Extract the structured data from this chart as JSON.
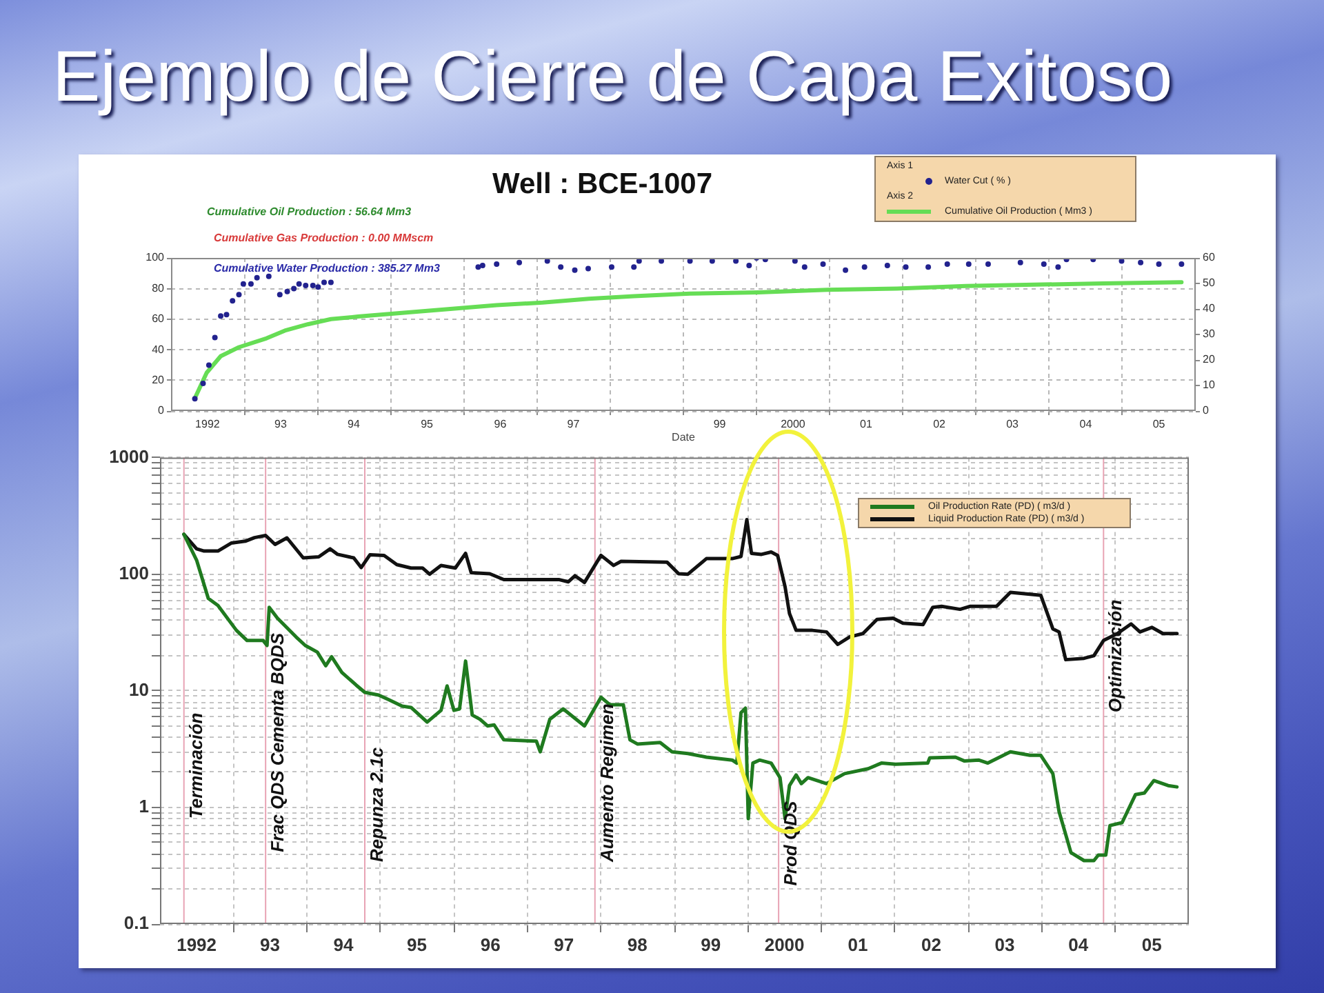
{
  "chart_data": [
    {
      "type": "line",
      "title": "Ejemplo de Cierre de Capa Exitoso",
      "subtitle": "Well : BCE-1007",
      "xlabel": "Date",
      "annotations": [
        "Cumulative Oil Production : 56.64 Mm3",
        "Cumulative Gas Production : 0.00 MMscm",
        "Cumulative Water Production : 385.27 Mm3",
        "Axis 1",
        "Axis 2"
      ],
      "xlim": [
        "1992",
        "2006"
      ],
      "xticks": [
        {
          "value": "1992-07",
          "label": "1992"
        },
        {
          "value": "1993",
          "label": null
        },
        {
          "value": "1993-07",
          "label": "93"
        },
        {
          "value": "1994",
          "label": null
        },
        {
          "value": "1994-07",
          "label": "94"
        },
        {
          "value": "1995",
          "label": null
        },
        {
          "value": "1995-07",
          "label": "95"
        },
        {
          "value": "1996",
          "label": null
        },
        {
          "value": "1996-07",
          "label": "96"
        },
        {
          "value": "1997",
          "label": null
        },
        {
          "value": "1997-07",
          "label": "97"
        },
        {
          "value": "1998",
          "label": null
        },
        {
          "value": "1999",
          "label": null
        },
        {
          "value": "1999-07",
          "label": "99"
        },
        {
          "value": "2000",
          "label": null
        },
        {
          "value": "2000-07",
          "label": "2000"
        },
        {
          "value": "2001",
          "label": null
        },
        {
          "value": "2001-07",
          "label": "01"
        },
        {
          "value": "2002",
          "label": null
        },
        {
          "value": "2002-07",
          "label": "02"
        },
        {
          "value": "2003",
          "label": null
        },
        {
          "value": "2003-07",
          "label": "03"
        },
        {
          "value": "2004",
          "label": null
        },
        {
          "value": "2004-07",
          "label": "04"
        },
        {
          "value": "2005",
          "label": null
        },
        {
          "value": "2005-07",
          "label": "05"
        }
      ],
      "ylim": [
        0,
        100
      ],
      "yticks": [
        0,
        20,
        40,
        60,
        80,
        100
      ],
      "y2lim": [
        0,
        60
      ],
      "y2ticks": [
        0,
        10,
        20,
        30,
        40,
        50,
        60
      ],
      "grid": true,
      "legend": "top right",
      "series": [
        {
          "name": "Water Cut ( % )",
          "type": "scatter",
          "marker": "circle",
          "color": "#22228e",
          "x": [
            "1992-04-29",
            "1992-06-09",
            "1992-07-08",
            "1992-08-07",
            "1992-09-05",
            "1992-10-04",
            "1992-11-03",
            "1992-12-05",
            "1992-12-27",
            "1993-02-03",
            "1993-03-05",
            "1993-05-03",
            "1993-06-27",
            "1993-08-03",
            "1993-09-05",
            "1993-10-01",
            "1993-11-03",
            "1993-12-09",
            "1994-01-04",
            "1994-02-03",
            "1994-03-09",
            "1996-03-13",
            "1996-04-04",
            "1996-06-13",
            "1996-10-04",
            "1997-02-21",
            "1997-04-29",
            "1997-07-08",
            "1997-09-13",
            "1998-01-08",
            "1998-04-29",
            "1998-05-25",
            "1998-09-13",
            "1999-02-03",
            "1999-05-25",
            "1999-09-20",
            "1999-11-25",
            "2000-01-01",
            "2000-02-14",
            "2000-07-11",
            "2000-08-28",
            "2000-11-28",
            "2001-03-20",
            "2001-06-23",
            "2001-10-15",
            "2002-01-15",
            "2002-05-07",
            "2002-08-10",
            "2002-11-25",
            "2003-03-02",
            "2003-08-10",
            "2003-12-05",
            "2004-02-14",
            "2004-03-27",
            "2004-08-07",
            "2004-12-27",
            "2005-04-01",
            "2005-07-01",
            "2005-10-22"
          ],
          "values": [
            8,
            18,
            30,
            48,
            62,
            63,
            72,
            76,
            83,
            83,
            87,
            88,
            76,
            78,
            80,
            83,
            82,
            82,
            81,
            84,
            84,
            94,
            95,
            96,
            97,
            98,
            94,
            92,
            93,
            94,
            94,
            98,
            98,
            98,
            98,
            98,
            95,
            100,
            99,
            98,
            94,
            96,
            92,
            94,
            95,
            94,
            94,
            96,
            96,
            96,
            97,
            96,
            94,
            99,
            99,
            98,
            97,
            96,
            96
          ]
        },
        {
          "name": "Cumulative Oil Production ( Mm3 )",
          "type": "line",
          "marker": "none",
          "axis": "y2",
          "color": "#66dd55",
          "x": [
            "1992-04-29",
            "1992-06-27",
            "1992-09-05",
            "1992-12-05",
            "1993-04-22",
            "1993-07-22",
            "1993-11-14",
            "1994-03-09",
            "1994-07-22",
            "1995-03-09",
            "1995-10-26",
            "1996-06-13",
            "1997-01-29",
            "1997-09-16",
            "1998-04-29",
            "1999-02-03",
            "2000-01-11",
            "2000-12-20",
            "2001-12-02",
            "2002-11-10",
            "2003-10-19",
            "2004-09-27",
            "2005-10-22"
          ],
          "values": [
            5,
            15,
            21.5,
            25,
            28.5,
            31.5,
            34,
            36,
            37,
            38.5,
            40,
            41.5,
            42.5,
            44,
            45,
            46,
            46.5,
            47.5,
            48,
            49,
            49.5,
            50,
            50.5
          ]
        }
      ]
    },
    {
      "type": "line",
      "log": "y",
      "xlim": [
        "1992",
        "2006"
      ],
      "xticks": [
        {
          "value": "1992-07",
          "label": "1992"
        },
        {
          "value": "1993",
          "label": null
        },
        {
          "value": "1993-07",
          "label": "93"
        },
        {
          "value": "1994",
          "label": null
        },
        {
          "value": "1994-07",
          "label": "94"
        },
        {
          "value": "1995",
          "label": null
        },
        {
          "value": "1995-07",
          "label": "95"
        },
        {
          "value": "1996",
          "label": null
        },
        {
          "value": "1996-07",
          "label": "96"
        },
        {
          "value": "1997",
          "label": null
        },
        {
          "value": "1997-07",
          "label": "97"
        },
        {
          "value": "1998",
          "label": null
        },
        {
          "value": "1998-07",
          "label": "98"
        },
        {
          "value": "1999",
          "label": null
        },
        {
          "value": "1999-07",
          "label": "99"
        },
        {
          "value": "2000",
          "label": null
        },
        {
          "value": "2000-07",
          "label": "2000"
        },
        {
          "value": "2001",
          "label": null
        },
        {
          "value": "2001-07",
          "label": "01"
        },
        {
          "value": "2002",
          "label": null
        },
        {
          "value": "2002-07",
          "label": "02"
        },
        {
          "value": "2003",
          "label": null
        },
        {
          "value": "2003-07",
          "label": "03"
        },
        {
          "value": "2004",
          "label": null
        },
        {
          "value": "2004-07",
          "label": "04"
        },
        {
          "value": "2005",
          "label": null
        },
        {
          "value": "2005-07",
          "label": "05"
        }
      ],
      "ylim": [
        0.1,
        1000
      ],
      "yticks": [
        0.1,
        {
          "value": 0.2,
          "label": null
        },
        {
          "value": 0.3,
          "label": null
        },
        {
          "value": 0.4,
          "label": null
        },
        {
          "value": 0.5,
          "label": null
        },
        {
          "value": 0.6,
          "label": null
        },
        {
          "value": 0.7,
          "label": null
        },
        {
          "value": 0.8,
          "label": null
        },
        {
          "value": 0.9,
          "label": null
        },
        1,
        {
          "value": 2,
          "label": null
        },
        {
          "value": 3,
          "label": null
        },
        {
          "value": 4,
          "label": null
        },
        {
          "value": 5,
          "label": null
        },
        {
          "value": 6,
          "label": null
        },
        {
          "value": 7,
          "label": null
        },
        {
          "value": 8,
          "label": null
        },
        {
          "value": 9,
          "label": null
        },
        10,
        {
          "value": 20,
          "label": null
        },
        {
          "value": 30,
          "label": null
        },
        {
          "value": 40,
          "label": null
        },
        {
          "value": 50,
          "label": null
        },
        {
          "value": 60,
          "label": null
        },
        {
          "value": 70,
          "label": null
        },
        {
          "value": 80,
          "label": null
        },
        {
          "value": 90,
          "label": null
        },
        100,
        {
          "value": 200,
          "label": null
        },
        {
          "value": 300,
          "label": null
        },
        {
          "value": 400,
          "label": null
        },
        {
          "value": 500,
          "label": null
        },
        {
          "value": 600,
          "label": null
        },
        {
          "value": 700,
          "label": null
        },
        {
          "value": 800,
          "label": null
        },
        {
          "value": 900,
          "label": null
        },
        1000
      ],
      "grid": true,
      "legend": "top right",
      "ref_lines": [
        {
          "axis": "x",
          "value": "1992-04-29",
          "label": "Terminación",
          "color": "#e8a3b4"
        },
        {
          "axis": "x",
          "value": "1993-06-09",
          "label": "Frac QDS Cementa BQDS",
          "color": "#e8a3b4"
        },
        {
          "axis": "x",
          "value": "1994-10-15",
          "label": "Repunza 2.1c",
          "color": "#e8a3b4"
        },
        {
          "axis": "x",
          "value": "1997-12-02",
          "label": "Aumento Regimen",
          "color": "#e8a3b4"
        },
        {
          "axis": "x",
          "value": "2000-06-02",
          "label": "Prod QDS",
          "color": "#e8a3b4"
        },
        {
          "axis": "x",
          "value": "2004-11-03",
          "label": "Optimización",
          "color": "#e8a3b4"
        }
      ],
      "series": [
        {
          "name": "Oil Production Rate (PD) ( m3/d )",
          "type": "line",
          "marker": "none",
          "color": "#1f7a1f",
          "x": [
            "1992-04-29",
            "1992-07-01",
            "1992-08-28",
            "1992-10-15",
            "1993-01-15",
            "1993-03-09",
            "1993-05-28",
            "1993-06-16",
            "1993-06-27",
            "1993-08-07",
            "1993-11-07",
            "1993-12-23",
            "1994-02-21",
            "1994-04-04",
            "1994-05-03",
            "1994-06-23",
            "1994-09-02",
            "1994-10-15",
            "1994-12-23",
            "1995-02-10",
            "1995-04-19",
            "1995-06-02",
            "1995-08-21",
            "1995-10-29",
            "1995-11-28",
            "1996-01-01",
            "1996-01-29",
            "1996-02-28",
            "1996-04-01",
            "1996-05-10",
            "1996-06-16",
            "1996-07-19",
            "1996-09-05",
            "1997-02-14",
            "1997-03-05",
            "1997-04-22",
            "1997-06-27",
            "1997-10-11",
            "1998-01-01",
            "1998-02-14",
            "1998-04-22",
            "1998-05-25",
            "1998-07-01",
            "1998-10-22",
            "1998-12-20",
            "1999-03-09",
            "1999-06-09",
            "1999-10-15",
            "1999-11-07",
            "1999-11-28",
            "1999-12-20",
            "2000-01-03",
            "2000-01-26",
            "2000-02-28",
            "2000-04-26",
            "2000-06-09",
            "2000-07-04",
            "2000-07-26",
            "2000-08-28",
            "2000-09-23",
            "2000-10-26",
            "2001-01-26",
            "2001-04-26",
            "2001-08-21",
            "2001-10-26",
            "2002-01-04",
            "2002-06-13",
            "2002-06-23",
            "2002-10-29",
            "2002-12-13",
            "2003-02-21",
            "2003-04-08",
            "2003-07-29",
            "2003-11-03",
            "2003-12-27",
            "2004-02-25",
            "2004-03-27",
            "2004-05-25",
            "2004-07-29",
            "2004-09-16",
            "2004-10-08",
            "2004-11-14",
            "2004-12-05",
            "2005-02-03",
            "2005-04-11",
            "2005-05-25",
            "2005-07-11",
            "2005-09-20",
            "2005-11-03"
          ],
          "values": [
            220,
            132,
            62,
            54,
            33,
            27,
            27,
            24.5,
            52,
            42,
            29,
            24.5,
            21.5,
            16.4,
            19.6,
            14.4,
            11.2,
            9.7,
            9.2,
            8.4,
            7.4,
            7.2,
            5.4,
            6.8,
            11,
            6.8,
            7,
            18,
            6.2,
            5.7,
            5,
            5.1,
            3.8,
            3.7,
            3,
            5.7,
            7,
            5,
            8.8,
            7.6,
            7.6,
            3.8,
            3.5,
            3.6,
            3,
            2.9,
            2.7,
            2.55,
            2.4,
            6.5,
            7.1,
            0.8,
            2.4,
            2.55,
            2.4,
            1.8,
            0.8,
            1.54,
            1.9,
            1.6,
            1.8,
            1.6,
            1.95,
            2.15,
            2.4,
            2.35,
            2.4,
            2.66,
            2.7,
            2.5,
            2.55,
            2.4,
            3,
            2.8,
            2.8,
            1.95,
            0.92,
            0.41,
            0.35,
            0.35,
            0.39,
            0.39,
            0.7,
            0.74,
            1.29,
            1.33,
            1.7,
            1.54,
            1.5
          ]
        },
        {
          "name": "Liquid Production Rate (PD) ( m3/d )",
          "type": "line",
          "marker": "none",
          "color": "#111111",
          "x": [
            "1992-04-29",
            "1992-07-01",
            "1992-08-07",
            "1992-10-15",
            "1992-12-20",
            "1993-02-28",
            "1993-04-15",
            "1993-06-09",
            "1993-07-26",
            "1993-09-23",
            "1993-12-13",
            "1994-02-28",
            "1994-04-26",
            "1994-06-02",
            "1994-08-21",
            "1994-09-27",
            "1994-11-10",
            "1995-01-19",
            "1995-03-23",
            "1995-06-02",
            "1995-07-29",
            "1995-09-02",
            "1995-10-29",
            "1996-01-08",
            "1996-02-28",
            "1996-03-27",
            "1996-06-27",
            "1996-09-05",
            "1997-06-05",
            "1997-07-22",
            "1997-08-25",
            "1997-10-11",
            "1998-01-01",
            "1998-03-05",
            "1998-04-11",
            "1998-11-25",
            "1999-01-22",
            "1999-03-09",
            "1999-06-09",
            "1999-10-15",
            "1999-11-28",
            "1999-12-27",
            "2000-01-19",
            "2000-03-09",
            "2000-04-26",
            "2000-05-28",
            "2000-07-04",
            "2000-07-26",
            "2000-08-28",
            "2000-11-17",
            "2001-01-26",
            "2001-03-23",
            "2001-05-21",
            "2001-07-26",
            "2001-10-04",
            "2001-12-23",
            "2002-02-10",
            "2002-05-21",
            "2002-07-08",
            "2002-08-21",
            "2002-11-21",
            "2003-01-08",
            "2003-05-21",
            "2003-07-29",
            "2003-12-27",
            "2004-02-25",
            "2004-03-27",
            "2004-04-29",
            "2004-07-29",
            "2004-09-16",
            "2004-11-03",
            "2005-01-11",
            "2005-03-20",
            "2005-05-03",
            "2005-07-01",
            "2005-08-25",
            "2005-11-03"
          ],
          "values": [
            220,
            165,
            158,
            158,
            185,
            192,
            206,
            215,
            180,
            205,
            138,
            141,
            165,
            148,
            138,
            114,
            147,
            145,
            121,
            113,
            113,
            100,
            119,
            113,
            151,
            103,
            101,
            90,
            90,
            86,
            97,
            85,
            145,
            119,
            129,
            127,
            101,
            100,
            136,
            136,
            142,
            294,
            151,
            148,
            155,
            145,
            78,
            46,
            33,
            33,
            32,
            25,
            29,
            31,
            41,
            42,
            38,
            37,
            52,
            53,
            50,
            53,
            53,
            70,
            66,
            34,
            32,
            18.5,
            19,
            20,
            27,
            31,
            37.5,
            32,
            35,
            31,
            31
          ]
        }
      ]
    }
  ]
}
